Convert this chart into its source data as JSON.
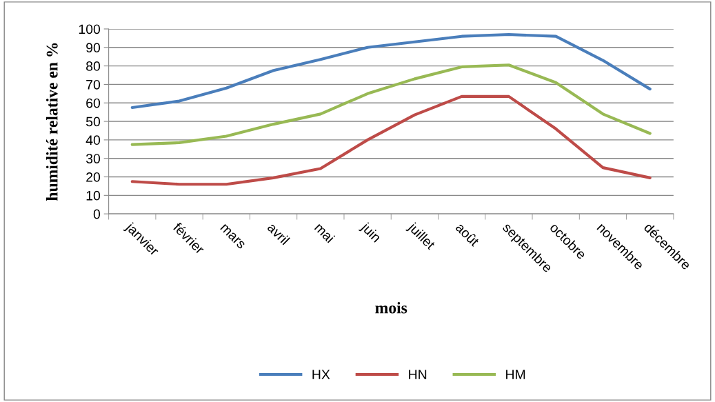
{
  "chart_data": {
    "type": "line",
    "xlabel": "mois",
    "ylabel": "humidité relative en %",
    "categories": [
      "janvier",
      "février",
      "mars",
      "avril",
      "mai",
      "juin",
      "juillet",
      "août",
      "septembre",
      "octobre",
      "novembre",
      "décembre"
    ],
    "series": [
      {
        "name": "HX",
        "color": "#4a7ebb",
        "values": [
          57.5,
          61,
          68,
          77.5,
          83.5,
          90,
          93,
          96,
          97,
          96,
          83,
          67.5
        ]
      },
      {
        "name": "HN",
        "color": "#be4b48",
        "values": [
          17.5,
          16,
          16,
          19.5,
          24.5,
          40,
          53.5,
          63.5,
          63.5,
          46,
          25,
          19.5
        ]
      },
      {
        "name": "HM",
        "color": "#98b954",
        "values": [
          37.5,
          38.5,
          42,
          48.5,
          54,
          65,
          73,
          79.5,
          80.5,
          71,
          54,
          43.5
        ]
      }
    ],
    "ylim": [
      0,
      100
    ],
    "yticks": [
      0,
      10,
      20,
      30,
      40,
      50,
      60,
      70,
      80,
      90,
      100
    ],
    "grid": "y",
    "legend": "bottom",
    "marker": "none",
    "line_style": "solid"
  }
}
